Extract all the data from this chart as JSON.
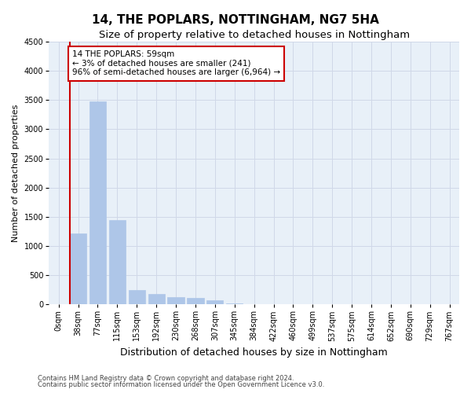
{
  "title": "14, THE POPLARS, NOTTINGHAM, NG7 5HA",
  "subtitle": "Size of property relative to detached houses in Nottingham",
  "xlabel": "Distribution of detached houses by size in Nottingham",
  "ylabel": "Number of detached properties",
  "footnote1": "Contains HM Land Registry data © Crown copyright and database right 2024.",
  "footnote2": "Contains public sector information licensed under the Open Government Licence v3.0.",
  "bar_labels": [
    "0sqm",
    "38sqm",
    "77sqm",
    "115sqm",
    "153sqm",
    "192sqm",
    "230sqm",
    "268sqm",
    "307sqm",
    "345sqm",
    "384sqm",
    "422sqm",
    "460sqm",
    "499sqm",
    "537sqm",
    "575sqm",
    "614sqm",
    "652sqm",
    "690sqm",
    "729sqm",
    "767sqm"
  ],
  "bar_values": [
    5,
    1220,
    3480,
    1440,
    240,
    175,
    130,
    110,
    75,
    20,
    0,
    5,
    0,
    0,
    0,
    0,
    0,
    0,
    0,
    0,
    0
  ],
  "bar_color": "#aec6e8",
  "bar_edgecolor": "#aec6e8",
  "property_line_bin": 1,
  "annotation_text": "14 THE POPLARS: 59sqm\n← 3% of detached houses are smaller (241)\n96% of semi-detached houses are larger (6,964) →",
  "annotation_box_color": "#ffffff",
  "annotation_box_edgecolor": "#cc0000",
  "red_line_color": "#cc0000",
  "ylim": [
    0,
    4500
  ],
  "yticks": [
    0,
    500,
    1000,
    1500,
    2000,
    2500,
    3000,
    3500,
    4000,
    4500
  ],
  "grid_color": "#d0d8e8",
  "bg_color": "#e8f0f8",
  "title_fontsize": 11,
  "subtitle_fontsize": 9.5,
  "ylabel_fontsize": 8,
  "xlabel_fontsize": 9,
  "tick_fontsize": 7,
  "annot_fontsize": 7.5
}
